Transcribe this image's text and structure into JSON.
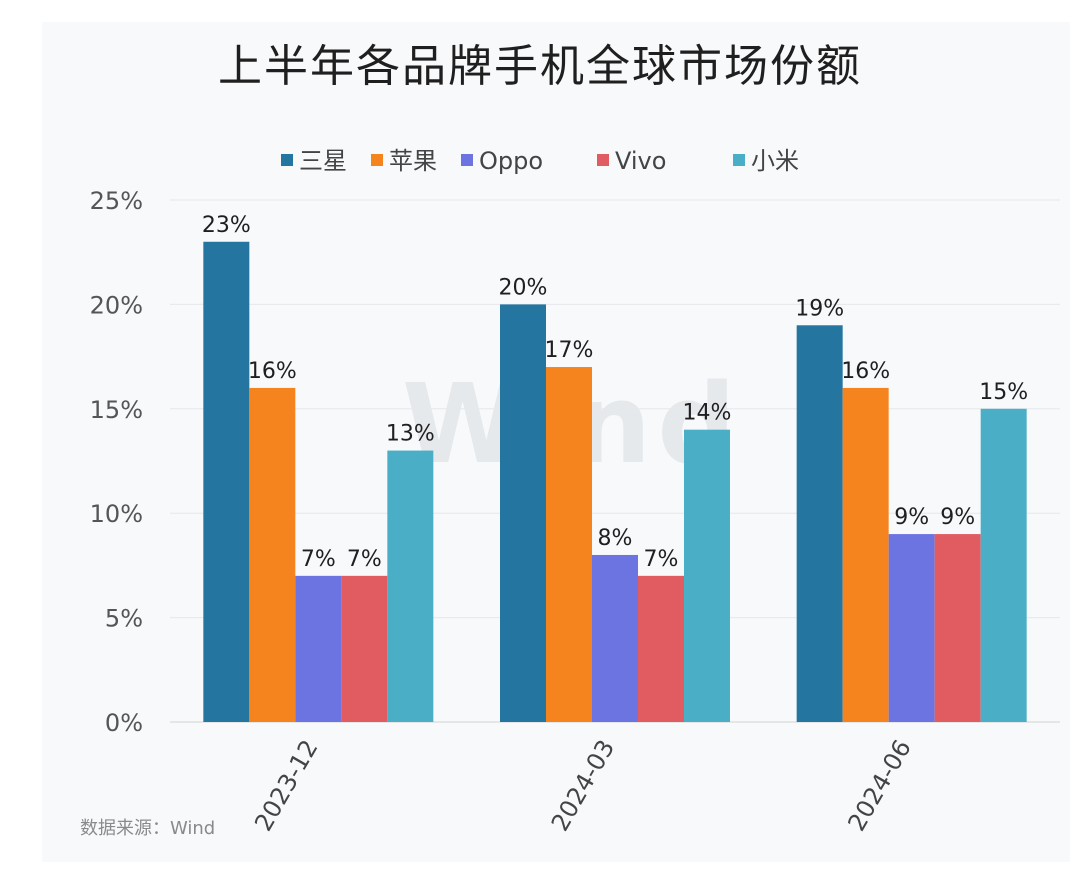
{
  "chart_data": {
    "type": "bar",
    "title": "上半年各品牌手机全球市场份额",
    "categories": [
      "2023-12",
      "2024-03",
      "2024-06"
    ],
    "series": [
      {
        "name": "三星",
        "color": "#2476a0",
        "values": [
          23,
          20,
          19
        ]
      },
      {
        "name": "苹果",
        "color": "#f5841f",
        "values": [
          16,
          17,
          16
        ]
      },
      {
        "name": "Oppo",
        "color": "#6b74e0",
        "values": [
          7,
          8,
          9
        ]
      },
      {
        "name": "Vivo",
        "color": "#e05c60",
        "values": [
          7,
          7,
          9
        ]
      },
      {
        "name": "小米",
        "color": "#4aafc6",
        "values": [
          13,
          14,
          15
        ]
      }
    ],
    "value_format": "percent",
    "ylim": [
      0,
      25
    ],
    "yticks": [
      0,
      5,
      10,
      15,
      20,
      25
    ],
    "xlabel": "",
    "ylabel": "",
    "legend": "top-center",
    "grid": true,
    "data_labels": true
  },
  "watermark": "Wind",
  "source": "数据来源：Wind"
}
